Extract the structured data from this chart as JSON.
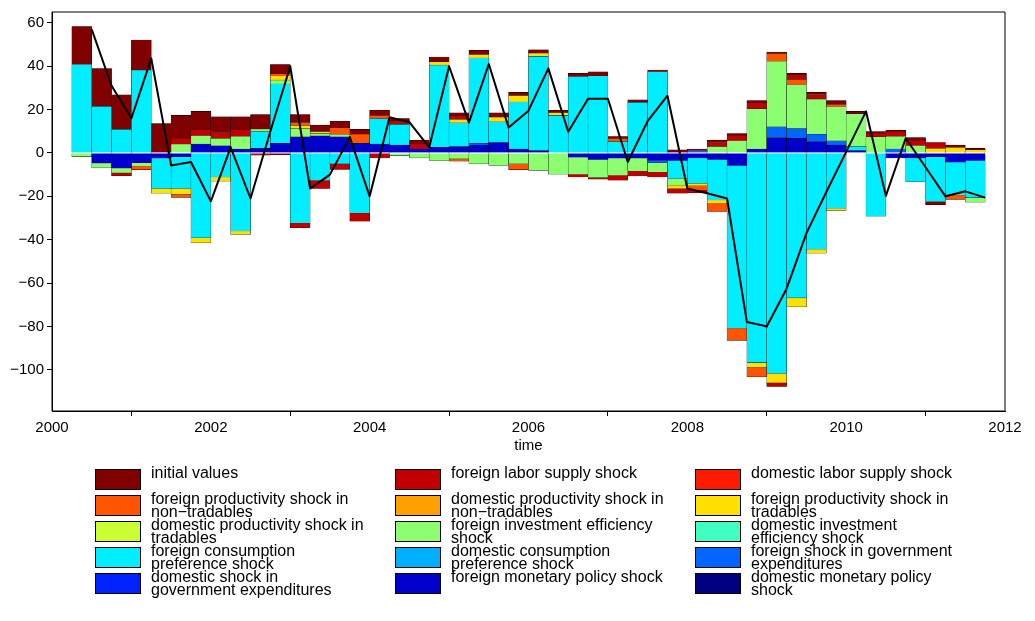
{
  "chart_data": {
    "type": "bar",
    "xlabel": "time",
    "stacked": true,
    "legend": "bottom",
    "x": [
      2000.375,
      2000.625,
      2000.875,
      2001.125,
      2001.375,
      2001.625,
      2001.875,
      2002.125,
      2002.375,
      2002.625,
      2002.875,
      2003.125,
      2003.375,
      2003.625,
      2003.875,
      2004.125,
      2004.375,
      2004.625,
      2004.875,
      2005.125,
      2005.375,
      2005.625,
      2005.875,
      2006.125,
      2006.375,
      2006.625,
      2006.875,
      2007.125,
      2007.375,
      2007.625,
      2007.875,
      2008.125,
      2008.375,
      2008.625,
      2008.875,
      2009.125,
      2009.375,
      2009.625,
      2009.875,
      2010.125,
      2010.375,
      2010.625,
      2010.875,
      2011.125,
      2011.375,
      2011.625
    ],
    "xlim": [
      2000,
      2012
    ],
    "xticks": [
      2000,
      2002,
      2004,
      2006,
      2008,
      2010,
      2012
    ],
    "ylim": [
      -119,
      65
    ],
    "yticks": [
      -100,
      -80,
      -60,
      -40,
      -20,
      0,
      20,
      40,
      60
    ],
    "series": [
      {
        "name": "domestic monetary policy shock",
        "color": "#000080",
        "values": [
          null,
          null,
          null,
          null,
          null,
          null,
          null,
          null,
          null,
          null,
          null,
          null,
          null,
          null,
          null,
          null,
          null,
          null,
          null,
          null,
          null,
          null,
          null,
          null,
          null,
          null,
          null,
          null,
          null,
          null,
          null,
          null,
          null,
          null,
          null,
          null,
          null,
          null,
          null,
          null,
          null,
          null,
          null,
          null,
          null,
          null
        ]
      },
      {
        "name": "foreign monetary policy shock",
        "color": "#0000cc",
        "values": [
          null,
          -4.7,
          -7,
          -4.5,
          -2.4,
          -1.7,
          4.1,
          3.3,
          1.8,
          2.1,
          4.4,
          7.4,
          7.9,
          7.4,
          4.4,
          4.1,
          3.6,
          1.8,
          2.6,
          2.9,
          3.6,
          4.8,
          1.8,
          1.1,
          null,
          -2,
          -3,
          -2.4,
          -2.4,
          -3.5,
          -3.5,
          -2.3,
          -3,
          -5.8,
          1.8,
          7.1,
          6.7,
          5.3,
          3.6,
          1.1,
          null,
          -2.3,
          -2.3,
          -1.7,
          -4.2,
          -3.5
        ]
      },
      {
        "name": "domestic shock in government expenditures",
        "color": "#0022ff",
        "values": [
          null,
          null,
          null,
          null,
          null,
          null,
          null,
          null,
          null,
          null,
          null,
          null,
          null,
          null,
          null,
          null,
          null,
          null,
          null,
          null,
          null,
          null,
          null,
          null,
          null,
          null,
          null,
          null,
          null,
          null,
          null,
          null,
          null,
          null,
          null,
          null,
          null,
          null,
          null,
          null,
          null,
          null,
          null,
          null,
          null,
          null
        ]
      },
      {
        "name": "foreign shock in government expenditures",
        "color": "#0066ff",
        "values": [
          null,
          null,
          null,
          null,
          null,
          null,
          null,
          null,
          null,
          null,
          null,
          null,
          null,
          null,
          null,
          null,
          null,
          null,
          null,
          null,
          0.8,
          null,
          null,
          null,
          null,
          null,
          null,
          null,
          null,
          -1,
          null,
          1,
          null,
          null,
          null,
          4.9,
          4.5,
          3.3,
          2,
          null,
          null,
          1.8,
          null,
          null,
          null,
          null
        ]
      },
      {
        "name": "domestic consumption preference shock",
        "color": "#00b0ff",
        "values": [
          null,
          null,
          null,
          null,
          null,
          null,
          null,
          null,
          null,
          null,
          null,
          null,
          null,
          null,
          null,
          null,
          null,
          null,
          null,
          null,
          null,
          null,
          null,
          null,
          null,
          null,
          null,
          null,
          null,
          null,
          null,
          null,
          null,
          null,
          null,
          null,
          null,
          null,
          null,
          null,
          null,
          null,
          null,
          null,
          null,
          null
        ]
      },
      {
        "name": "foreign consumption preference shock",
        "color": "#00eeff",
        "values": [
          40.8,
          21.5,
          10.9,
          38.2,
          -14,
          -14.7,
          -39.1,
          -11.1,
          -36,
          7.7,
          27.4,
          -32.3,
          -12.6,
          -5,
          -27.7,
          11.7,
          9.6,
          null,
          37.9,
          11,
          39.4,
          9.6,
          21.7,
          43.4,
          17.3,
          35.2,
          35.5,
          5.2,
          23.3,
          37.4,
          -8.3,
          -11.8,
          -18.7,
          -75,
          -96.7,
          -101.7,
          -66.8,
          -44.4,
          -25.5,
          1.8,
          -29.2,
          null,
          -11,
          -20.7,
          -15.2,
          -17.1
        ]
      },
      {
        "name": "domestic investment efficiency shock",
        "color": "#40ffc0",
        "values": [
          null,
          null,
          null,
          null,
          null,
          null,
          null,
          null,
          null,
          null,
          null,
          null,
          null,
          null,
          null,
          null,
          null,
          null,
          null,
          null,
          null,
          null,
          null,
          null,
          null,
          null,
          null,
          null,
          null,
          null,
          null,
          null,
          null,
          null,
          null,
          null,
          null,
          null,
          null,
          null,
          null,
          null,
          null,
          null,
          null,
          null
        ]
      },
      {
        "name": "foreign investment efficiency shock",
        "color": "#8cff70",
        "values": [
          -1.7,
          -2.1,
          -2.2,
          -1.5,
          null,
          4.1,
          3.8,
          3.4,
          5.8,
          1.2,
          1.8,
          3.8,
          1.1,
          1.1,
          null,
          null,
          -1.2,
          -2.3,
          -3.5,
          -2.7,
          -5,
          -5.8,
          -5,
          -8,
          -9.8,
          -7.8,
          -8.4,
          -7.9,
          -5.9,
          -4.3,
          -3,
          null,
          2.9,
          5.6,
          18.5,
          30.3,
          20.2,
          16.2,
          15.6,
          15.1,
          7.4,
          5.8,
          3.3,
          null,
          null,
          -2.1
        ]
      },
      {
        "name": "domestic productivity shock in tradables",
        "color": "#ccff33",
        "values": [
          null,
          null,
          null,
          null,
          null,
          null,
          null,
          null,
          null,
          null,
          null,
          null,
          null,
          null,
          null,
          null,
          null,
          null,
          null,
          null,
          null,
          null,
          null,
          null,
          null,
          null,
          null,
          null,
          null,
          null,
          null,
          null,
          null,
          null,
          null,
          null,
          null,
          null,
          null,
          null,
          null,
          null,
          null,
          null,
          null,
          null
        ]
      },
      {
        "name": "foreign productivity shock in tradables",
        "color": "#ffe000",
        "values": [
          null,
          null,
          null,
          null,
          -2.2,
          -2.7,
          -2.3,
          -1.9,
          -1.6,
          null,
          1.9,
          1.5,
          0.8,
          null,
          null,
          null,
          null,
          null,
          1.5,
          1.6,
          1.5,
          2.1,
          2.9,
          1.5,
          1.2,
          null,
          null,
          null,
          null,
          null,
          -1.6,
          -1,
          -1.5,
          null,
          -2.3,
          -4.3,
          -4.1,
          -1.8,
          -1,
          null,
          null,
          null,
          null,
          2.1,
          2.6,
          1.4
        ]
      },
      {
        "name": "domestic productivity shock in non−tradables",
        "color": "#ffa000",
        "values": [
          null,
          null,
          null,
          null,
          null,
          null,
          null,
          null,
          null,
          null,
          null,
          null,
          null,
          null,
          null,
          null,
          null,
          null,
          null,
          null,
          null,
          null,
          null,
          null,
          null,
          null,
          null,
          null,
          null,
          null,
          null,
          null,
          null,
          null,
          null,
          null,
          null,
          null,
          null,
          null,
          null,
          null,
          null,
          null,
          null,
          null
        ]
      },
      {
        "name": "foreign productivity shock in non−tradables",
        "color": "#ff5500",
        "values": [
          null,
          null,
          null,
          -1.7,
          null,
          -1.4,
          null,
          null,
          null,
          null,
          0.9,
          1.2,
          null,
          3,
          4.2,
          1.5,
          null,
          null,
          null,
          -1.1,
          null,
          null,
          -2.7,
          null,
          null,
          null,
          null,
          1.5,
          null,
          null,
          null,
          -2,
          -3.8,
          -5.6,
          -4.2,
          3.5,
          2.5,
          null,
          1.1,
          null,
          null,
          null,
          null,
          null,
          -2,
          null
        ]
      },
      {
        "name": "domestic labor supply shock",
        "color": "#ff1a00",
        "values": [
          null,
          null,
          null,
          null,
          null,
          null,
          null,
          null,
          null,
          null,
          null,
          null,
          null,
          null,
          null,
          null,
          null,
          null,
          null,
          null,
          null,
          null,
          null,
          null,
          null,
          null,
          null,
          null,
          null,
          null,
          null,
          null,
          null,
          null,
          null,
          null,
          null,
          null,
          null,
          null,
          null,
          null,
          null,
          null,
          null,
          null
        ]
      },
      {
        "name": "foreign labor supply shock",
        "color": "#c00000",
        "values": [
          null,
          null,
          -1.3,
          null,
          null,
          2.7,
          2.7,
          2.7,
          3,
          -1,
          -0.8,
          -2.2,
          -3.8,
          -2.6,
          -3.8,
          -2.3,
          1.8,
          2.3,
          null,
          1.8,
          null,
          null,
          null,
          null,
          null,
          -1.3,
          -0.7,
          -2.3,
          -2.3,
          -2.3,
          -2.2,
          -1.3,
          1.9,
          2.6,
          3,
          -1.7,
          2,
          2,
          null,
          null,
          1.7,
          2.2,
          2.6,
          2.7,
          null,
          null
        ]
      },
      {
        "name": "initial values",
        "color": "#800000",
        "values": [
          17.5,
          17.4,
          15.9,
          13.9,
          13.5,
          10.5,
          8.6,
          7.3,
          6.1,
          6.7,
          4.4,
          3.8,
          3,
          3.1,
          2.3,
          2.4,
          0.9,
          1.8,
          2.2,
          1.2,
          2,
          2,
          1.5,
          1.6,
          1.2,
          1.5,
          1.9,
          0.9,
          1.2,
          0.8,
          1.4,
          0.8,
          1.1,
          0.7,
          0.8,
          0.7,
          0.8,
          1.1,
          1.8,
          1.2,
          0.7,
          0.7,
          1.2,
          -1.5,
          1,
          0.7
        ]
      },
      {
        "type": "line",
        "color": "#000000",
        "x": [
          2000.5,
          2000.75,
          2001,
          2001.25,
          2001.5,
          2001.75,
          2002,
          2002.25,
          2002.5,
          2002.75,
          2003,
          2003.25,
          2003.5,
          2003.75,
          2004,
          2004.25,
          2004.5,
          2004.75,
          2005,
          2005.25,
          2005.5,
          2005.75,
          2006,
          2006.25,
          2006.5,
          2006.75,
          2007,
          2007.25,
          2007.5,
          2007.75,
          2008,
          2008.25,
          2008.5,
          2008.75,
          2009,
          2009.25,
          2009.5,
          2009.75,
          2010,
          2010.25,
          2010.5,
          2010.75,
          2011,
          2011.25,
          2011.5,
          2011.75
        ],
        "values": [
          57,
          31,
          16,
          43.6,
          -5.8,
          -4.2,
          -22.3,
          2.6,
          -21,
          10,
          40,
          -16.4,
          -10,
          7.3,
          -20,
          16.5,
          14.2,
          2.6,
          40,
          14,
          41,
          11.7,
          19.5,
          39,
          9.8,
          25,
          25,
          -4.2,
          14.7,
          26.4,
          -16.4,
          -18.6,
          -21,
          -78,
          -80,
          -62.6,
          -37,
          -18,
          0.5,
          19.2,
          -19.8,
          6.8,
          -6.6,
          -20,
          -17.7,
          -20.6
        ]
      }
    ]
  }
}
